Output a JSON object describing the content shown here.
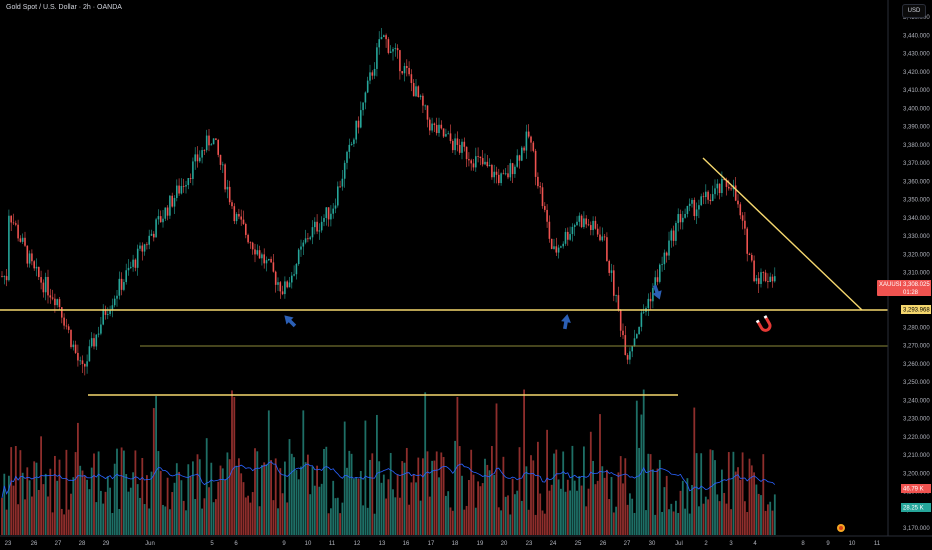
{
  "header": {
    "title": "Gold Spot / U.S. Dollar · 2h · OANDA",
    "currency": "USD"
  },
  "price_axis": {
    "ticks": [
      "3,450.000",
      "3,440.000",
      "3,430.000",
      "3,420.000",
      "3,410.000",
      "3,400.000",
      "3,390.000",
      "3,380.000",
      "3,370.000",
      "3,360.000",
      "3,350.000",
      "3,340.000",
      "3,330.000",
      "3,320.000",
      "3,310.000",
      "3,300.000",
      "3,290.000",
      "3,280.000",
      "3,270.000",
      "3,260.000",
      "3,250.000",
      "3,240.000",
      "3,230.000",
      "3,220.000",
      "3,210.000",
      "3,200.000",
      "3,190.000",
      "3,180.000",
      "3,170.000"
    ]
  },
  "time_axis": {
    "ticks": [
      "23",
      "26",
      "27",
      "28",
      "29",
      "Jun",
      "5",
      "6",
      "9",
      "10",
      "11",
      "12",
      "13",
      "16",
      "17",
      "18",
      "19",
      "20",
      "23",
      "24",
      "25",
      "26",
      "27",
      "30",
      "Jul",
      "2",
      "3",
      "4",
      "8",
      "9",
      "10",
      "11"
    ]
  },
  "price_tags": {
    "symbol": "XAUUSD",
    "last_price": "3,308.025",
    "countdown": "01:28",
    "level": "3,293.968",
    "volume": "46.79 K",
    "volume_ma": "28.25 K"
  },
  "colors": {
    "up": "#26a69a",
    "down": "#ef5350",
    "trendline": "#f5d76e",
    "arrow": "#2b5fb5",
    "volume_ma": "#2962ff",
    "background": "#000000"
  },
  "icons": [
    "arrow-up-icon",
    "arrow-down-icon",
    "magnet-icon",
    "logo-icon"
  ],
  "chart_data": {
    "type": "candlestick",
    "title": "Gold Spot / U.S. Dollar · 2h · OANDA",
    "ylim": [
      3170,
      3455
    ],
    "grid": false,
    "series": [
      {
        "name": "XAUUSD close (approx. swing points)",
        "x": [
          "23",
          "26",
          "27",
          "28",
          "29",
          "Jun",
          "5",
          "6",
          "9",
          "10",
          "11",
          "12",
          "13",
          "16",
          "17",
          "18",
          "19",
          "20",
          "23",
          "24",
          "25",
          "26",
          "27",
          "30",
          "Jul",
          "2",
          "3",
          "4"
        ],
        "values": [
          3345,
          3310,
          3295,
          3255,
          3290,
          3330,
          3385,
          3340,
          3300,
          3330,
          3345,
          3390,
          3440,
          3420,
          3390,
          3380,
          3370,
          3360,
          3385,
          3320,
          3340,
          3330,
          3265,
          3300,
          3340,
          3350,
          3360,
          3308
        ]
      },
      {
        "name": "Volume",
        "unit": "K",
        "last": 46.79
      },
      {
        "name": "Volume MA",
        "unit": "K",
        "last": 28.25
      }
    ],
    "horizontal_levels": [
      3293.968,
      3273,
      3248
    ],
    "descending_trendline": {
      "from": [
        "2",
        3380
      ],
      "to": [
        "9",
        3294
      ]
    },
    "annotations": [
      "up arrow near 9 Jun low",
      "up arrow near 24 Jun low",
      "down arrow near 30 Jun"
    ]
  }
}
